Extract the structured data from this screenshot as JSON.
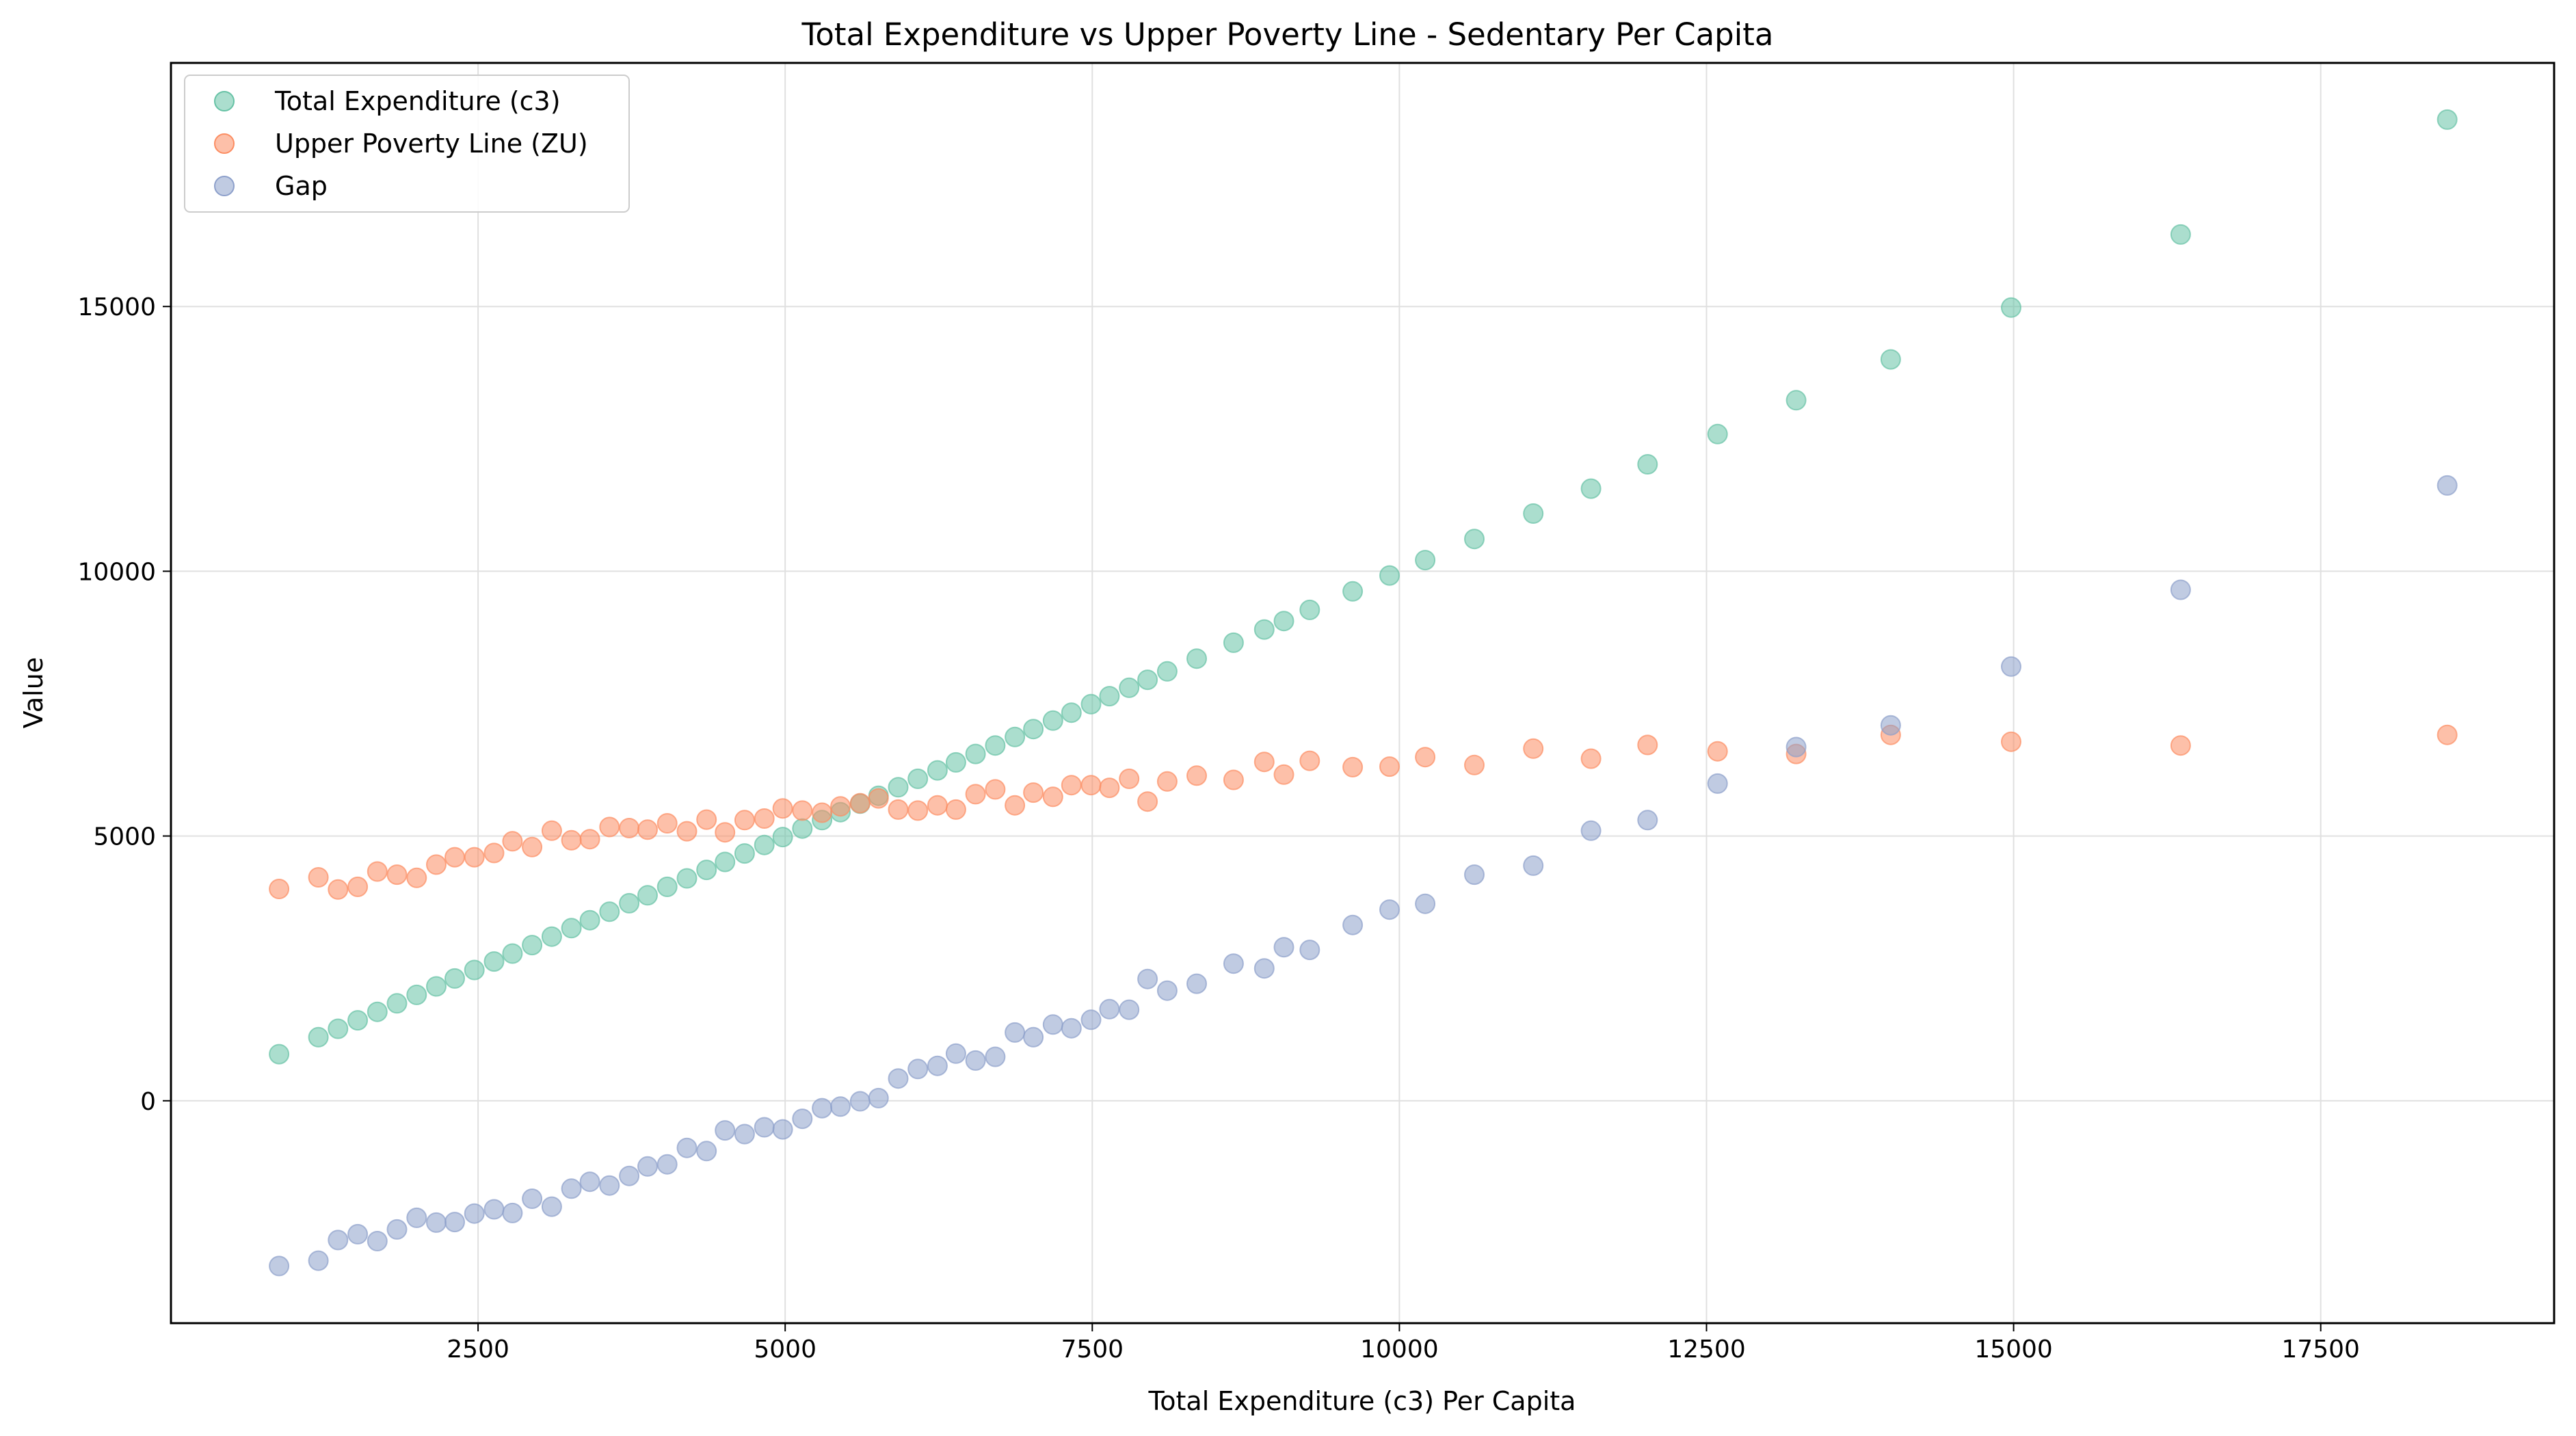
{
  "chart_data": {
    "type": "scatter",
    "title": "Total Expenditure vs Upper Poverty Line - Sedentary Per Capita",
    "xlabel": "Total Expenditure (c3) Per Capita",
    "ylabel": "Value",
    "xlim": [
      0,
      19400
    ],
    "ylim": [
      -4200,
      19600
    ],
    "xticks": [
      2500,
      5000,
      7500,
      10000,
      12500,
      15000,
      17500
    ],
    "yticks": [
      0,
      5000,
      10000,
      15000
    ],
    "grid": true,
    "legend_position": "top-left",
    "x": [
      880,
      1200,
      1360,
      1520,
      1680,
      1840,
      2000,
      2160,
      2310,
      2470,
      2630,
      2780,
      2940,
      3100,
      3260,
      3410,
      3570,
      3730,
      3880,
      4040,
      4200,
      4360,
      4510,
      4670,
      4830,
      4980,
      5140,
      5300,
      5450,
      5610,
      5760,
      5920,
      6080,
      6240,
      6390,
      6550,
      6710,
      6870,
      7020,
      7180,
      7330,
      7490,
      7640,
      7800,
      7950,
      8110,
      8350,
      8650,
      8900,
      9060,
      9270,
      9620,
      9920,
      10210,
      10610,
      11090,
      11560,
      12020,
      12590,
      13230,
      14000,
      14980,
      16360,
      18530
    ],
    "series": [
      {
        "name": "Total Expenditure (c3)",
        "color": "#66c2a5",
        "values": [
          880,
          1200,
          1360,
          1520,
          1680,
          1840,
          2000,
          2160,
          2310,
          2470,
          2630,
          2780,
          2940,
          3100,
          3260,
          3410,
          3570,
          3730,
          3880,
          4040,
          4200,
          4360,
          4510,
          4670,
          4830,
          4980,
          5140,
          5300,
          5450,
          5610,
          5760,
          5920,
          6080,
          6240,
          6390,
          6550,
          6710,
          6870,
          7020,
          7180,
          7330,
          7490,
          7640,
          7800,
          7950,
          8110,
          8350,
          8650,
          8900,
          9060,
          9270,
          9620,
          9920,
          10210,
          10610,
          11090,
          11560,
          12020,
          12590,
          13230,
          14000,
          14980,
          16360,
          18530
        ]
      },
      {
        "name": "Upper Poverty Line (ZU)",
        "color": "#fc8d62",
        "values": [
          4000,
          4220,
          3990,
          4040,
          4330,
          4270,
          4210,
          4460,
          4600,
          4600,
          4680,
          4900,
          4790,
          5100,
          4920,
          4940,
          5170,
          5150,
          5120,
          5240,
          5090,
          5310,
          5070,
          5300,
          5330,
          5520,
          5480,
          5440,
          5560,
          5620,
          5710,
          5500,
          5480,
          5580,
          5500,
          5790,
          5880,
          5580,
          5820,
          5740,
          5960,
          5960,
          5910,
          6080,
          5650,
          6030,
          6140,
          6060,
          6400,
          6160,
          6420,
          6300,
          6310,
          6490,
          6340,
          6650,
          6460,
          6720,
          6600,
          6550,
          6910,
          6780,
          6710,
          6910
        ]
      },
      {
        "name": "Gap",
        "color": "#8da0cb",
        "values": [
          -3120,
          -3020,
          -2630,
          -2520,
          -2650,
          -2430,
          -2210,
          -2300,
          -2290,
          -2130,
          -2050,
          -2120,
          -1850,
          -2000,
          -1660,
          -1530,
          -1600,
          -1420,
          -1240,
          -1200,
          -890,
          -950,
          -560,
          -630,
          -500,
          -540,
          -340,
          -140,
          -110,
          -10,
          50,
          420,
          600,
          660,
          890,
          760,
          830,
          1290,
          1200,
          1440,
          1370,
          1530,
          1730,
          1720,
          2300,
          2080,
          2210,
          2590,
          2500,
          2900,
          2850,
          3320,
          3610,
          3720,
          4270,
          4440,
          5100,
          5300,
          5990,
          6680,
          7090,
          8200,
          9650,
          11620
        ]
      }
    ]
  }
}
